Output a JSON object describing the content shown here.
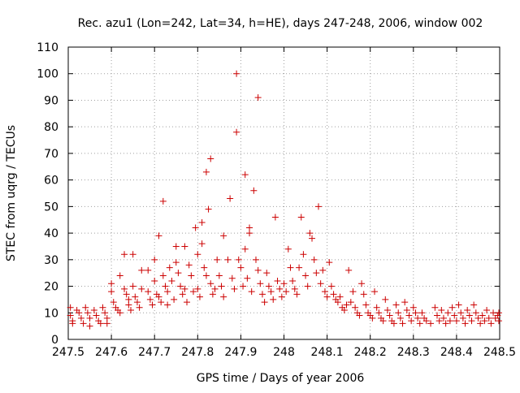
{
  "chart_data": {
    "type": "scatter",
    "title": "Rec. azu1 (Lon=242, Lat=34, h=HE), days 247-248, 2006, window 002",
    "xlabel": "GPS time / Days of year 2006",
    "ylabel": "STEC from uqrg / TECUs",
    "xlim": [
      247.5,
      248.5
    ],
    "ylim": [
      0,
      110
    ],
    "xticks": [
      "247.5",
      "247.6",
      "247.7",
      "247.8",
      "247.9",
      "248",
      "248.1",
      "248.2",
      "248.3",
      "248.4",
      "248.5"
    ],
    "yticks": [
      "0",
      "10",
      "20",
      "30",
      "40",
      "50",
      "60",
      "70",
      "80",
      "90",
      "100",
      "110"
    ],
    "grid": true,
    "legend": "none",
    "marker": "plus",
    "color": "#cc0000",
    "points": [
      [
        247.505,
        12
      ],
      [
        247.505,
        9
      ],
      [
        247.51,
        7
      ],
      [
        247.51,
        6
      ],
      [
        247.52,
        11
      ],
      [
        247.525,
        10
      ],
      [
        247.53,
        8
      ],
      [
        247.535,
        6
      ],
      [
        247.54,
        12
      ],
      [
        247.545,
        10
      ],
      [
        247.55,
        8
      ],
      [
        247.55,
        5
      ],
      [
        247.56,
        11
      ],
      [
        247.565,
        9
      ],
      [
        247.57,
        7
      ],
      [
        247.575,
        6
      ],
      [
        247.58,
        12
      ],
      [
        247.585,
        10
      ],
      [
        247.59,
        8
      ],
      [
        247.59,
        6
      ],
      [
        247.6,
        21
      ],
      [
        247.6,
        18
      ],
      [
        247.605,
        14
      ],
      [
        247.61,
        12
      ],
      [
        247.615,
        11
      ],
      [
        247.62,
        10
      ],
      [
        247.62,
        24
      ],
      [
        247.63,
        32
      ],
      [
        247.63,
        19
      ],
      [
        247.635,
        17
      ],
      [
        247.64,
        15
      ],
      [
        247.64,
        13
      ],
      [
        247.645,
        11
      ],
      [
        247.65,
        32
      ],
      [
        247.65,
        20
      ],
      [
        247.655,
        16
      ],
      [
        247.66,
        14
      ],
      [
        247.665,
        12
      ],
      [
        247.67,
        26
      ],
      [
        247.67,
        19
      ],
      [
        247.685,
        26
      ],
      [
        247.685,
        18
      ],
      [
        247.69,
        15
      ],
      [
        247.695,
        13
      ],
      [
        247.7,
        30
      ],
      [
        247.7,
        22
      ],
      [
        247.705,
        17
      ],
      [
        247.71,
        39
      ],
      [
        247.71,
        16
      ],
      [
        247.715,
        14
      ],
      [
        247.72,
        52
      ],
      [
        247.72,
        24
      ],
      [
        247.725,
        20
      ],
      [
        247.73,
        18
      ],
      [
        247.73,
        13
      ],
      [
        247.735,
        27
      ],
      [
        247.74,
        22
      ],
      [
        247.745,
        15
      ],
      [
        247.75,
        35
      ],
      [
        247.75,
        29
      ],
      [
        247.755,
        25
      ],
      [
        247.76,
        20
      ],
      [
        247.765,
        17
      ],
      [
        247.77,
        35
      ],
      [
        247.77,
        19
      ],
      [
        247.775,
        14
      ],
      [
        247.78,
        28
      ],
      [
        247.785,
        24
      ],
      [
        247.79,
        18
      ],
      [
        247.795,
        42
      ],
      [
        247.8,
        32
      ],
      [
        247.8,
        19
      ],
      [
        247.805,
        16
      ],
      [
        247.81,
        44
      ],
      [
        247.81,
        36
      ],
      [
        247.815,
        27
      ],
      [
        247.82,
        63
      ],
      [
        247.82,
        24
      ],
      [
        247.825,
        49
      ],
      [
        247.83,
        68
      ],
      [
        247.83,
        21
      ],
      [
        247.835,
        17
      ],
      [
        247.84,
        19
      ],
      [
        247.845,
        30
      ],
      [
        247.85,
        24
      ],
      [
        247.855,
        20
      ],
      [
        247.86,
        16
      ],
      [
        247.86,
        39
      ],
      [
        247.87,
        30
      ],
      [
        247.875,
        53
      ],
      [
        247.88,
        23
      ],
      [
        247.885,
        19
      ],
      [
        247.89,
        100
      ],
      [
        247.89,
        78
      ],
      [
        247.895,
        30
      ],
      [
        247.9,
        27
      ],
      [
        247.905,
        20
      ],
      [
        247.91,
        62
      ],
      [
        247.91,
        34
      ],
      [
        247.915,
        23
      ],
      [
        247.92,
        42
      ],
      [
        247.92,
        40
      ],
      [
        247.925,
        18
      ],
      [
        247.93,
        56
      ],
      [
        247.935,
        30
      ],
      [
        247.94,
        91
      ],
      [
        247.94,
        26
      ],
      [
        247.945,
        21
      ],
      [
        247.95,
        17
      ],
      [
        247.955,
        14
      ],
      [
        247.96,
        25
      ],
      [
        247.965,
        20
      ],
      [
        247.97,
        18
      ],
      [
        247.975,
        15
      ],
      [
        247.98,
        46
      ],
      [
        247.985,
        22
      ],
      [
        247.99,
        19
      ],
      [
        247.995,
        16
      ],
      [
        248.0,
        21
      ],
      [
        248.005,
        18
      ],
      [
        248.01,
        34
      ],
      [
        248.015,
        27
      ],
      [
        248.02,
        22
      ],
      [
        248.025,
        19
      ],
      [
        248.03,
        17
      ],
      [
        248.035,
        27
      ],
      [
        248.04,
        46
      ],
      [
        248.045,
        32
      ],
      [
        248.05,
        24
      ],
      [
        248.055,
        20
      ],
      [
        248.06,
        40
      ],
      [
        248.065,
        38
      ],
      [
        248.07,
        30
      ],
      [
        248.075,
        25
      ],
      [
        248.08,
        50
      ],
      [
        248.085,
        21
      ],
      [
        248.09,
        26
      ],
      [
        248.095,
        18
      ],
      [
        248.1,
        16
      ],
      [
        248.105,
        29
      ],
      [
        248.11,
        20
      ],
      [
        248.115,
        17
      ],
      [
        248.12,
        15
      ],
      [
        248.125,
        14
      ],
      [
        248.13,
        16
      ],
      [
        248.135,
        12
      ],
      [
        248.14,
        11
      ],
      [
        248.145,
        13
      ],
      [
        248.15,
        26
      ],
      [
        248.155,
        14
      ],
      [
        248.16,
        18
      ],
      [
        248.165,
        12
      ],
      [
        248.17,
        10
      ],
      [
        248.175,
        9
      ],
      [
        248.18,
        21
      ],
      [
        248.185,
        17
      ],
      [
        248.19,
        13
      ],
      [
        248.195,
        10
      ],
      [
        248.2,
        9
      ],
      [
        248.205,
        8
      ],
      [
        248.21,
        18
      ],
      [
        248.215,
        12
      ],
      [
        248.22,
        10
      ],
      [
        248.225,
        8
      ],
      [
        248.23,
        7
      ],
      [
        248.235,
        15
      ],
      [
        248.24,
        11
      ],
      [
        248.245,
        9
      ],
      [
        248.25,
        7
      ],
      [
        248.255,
        6
      ],
      [
        248.26,
        13
      ],
      [
        248.265,
        10
      ],
      [
        248.27,
        8
      ],
      [
        248.275,
        6
      ],
      [
        248.28,
        14
      ],
      [
        248.285,
        11
      ],
      [
        248.29,
        9
      ],
      [
        248.295,
        7
      ],
      [
        248.3,
        12
      ],
      [
        248.305,
        10
      ],
      [
        248.31,
        8
      ],
      [
        248.315,
        6
      ],
      [
        248.32,
        10
      ],
      [
        248.325,
        8
      ],
      [
        248.33,
        7
      ],
      [
        248.34,
        6
      ],
      [
        248.35,
        12
      ],
      [
        248.355,
        9
      ],
      [
        248.36,
        7
      ],
      [
        248.365,
        11
      ],
      [
        248.37,
        8
      ],
      [
        248.375,
        6
      ],
      [
        248.38,
        10
      ],
      [
        248.385,
        7
      ],
      [
        248.39,
        12
      ],
      [
        248.395,
        9
      ],
      [
        248.4,
        7
      ],
      [
        248.405,
        13
      ],
      [
        248.41,
        10
      ],
      [
        248.415,
        8
      ],
      [
        248.42,
        6
      ],
      [
        248.425,
        11
      ],
      [
        248.43,
        9
      ],
      [
        248.435,
        7
      ],
      [
        248.44,
        13
      ],
      [
        248.445,
        10
      ],
      [
        248.45,
        8
      ],
      [
        248.455,
        6
      ],
      [
        248.46,
        9
      ],
      [
        248.465,
        7
      ],
      [
        248.47,
        11
      ],
      [
        248.475,
        8
      ],
      [
        248.48,
        6
      ],
      [
        248.485,
        10
      ],
      [
        248.49,
        8
      ],
      [
        248.495,
        9
      ],
      [
        248.498,
        10
      ],
      [
        248.498,
        7
      ]
    ]
  }
}
